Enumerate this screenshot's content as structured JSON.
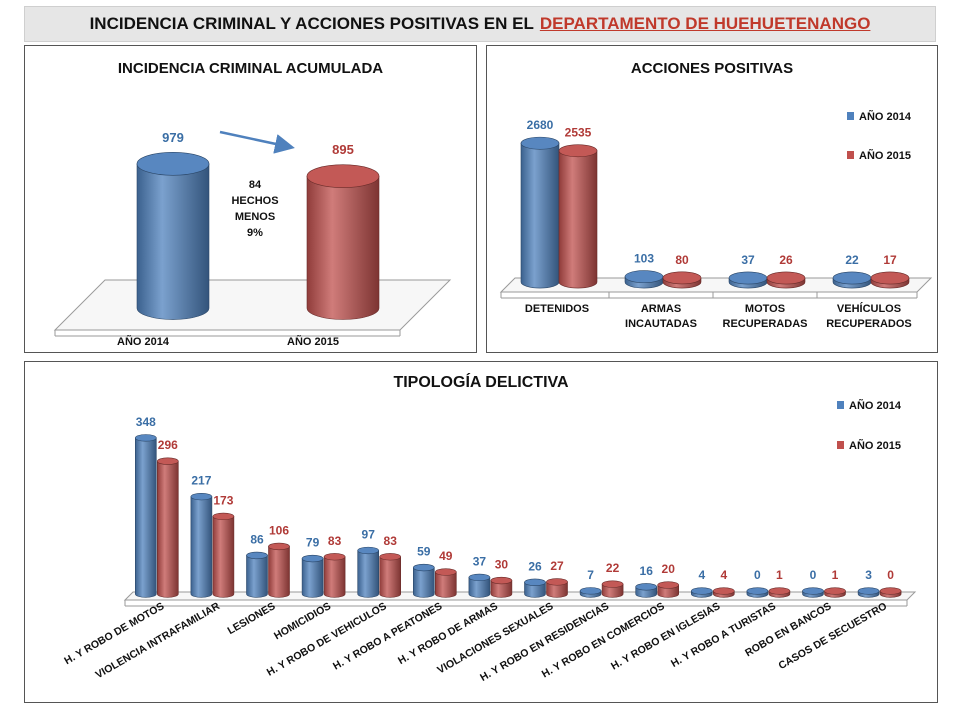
{
  "header": {
    "title_prefix": "INCIDENCIA CRIMINAL Y ACCIONES POSITIVAS EN EL",
    "title_highlight": "DEPARTAMENTO DE HUEHUETENANGO"
  },
  "colors": {
    "series_2014": "#4f81bd",
    "series_2015": "#c0504d",
    "label_2014": "#3a6ea5",
    "label_2015": "#b03a37",
    "highlight": "#c0392b"
  },
  "annotation": {
    "lines": [
      "84",
      "HECHOS",
      "MENOS",
      "9%"
    ]
  },
  "chart_data": [
    {
      "type": "bar",
      "title": "INCIDENCIA CRIMINAL ACUMULADA",
      "categories": [
        "AÑO 2014",
        "AÑO 2015"
      ],
      "values": [
        979,
        895
      ],
      "ylim": [
        0,
        1100
      ],
      "legend": "none",
      "grid": false
    },
    {
      "type": "bar",
      "title": "ACCIONES POSITIVAS",
      "categories": [
        [
          "DETENIDOS"
        ],
        [
          "ARMAS",
          "INCAUTADAS"
        ],
        [
          "MOTOS",
          "RECUPERADAS"
        ],
        [
          "VEHÍCULOS",
          "RECUPERADOS"
        ]
      ],
      "series": [
        {
          "name": "AÑO 2014",
          "values": [
            2680,
            103,
            37,
            22
          ]
        },
        {
          "name": "AÑO 2015",
          "values": [
            2535,
            80,
            26,
            17
          ]
        }
      ],
      "ylim": [
        0,
        2800
      ],
      "legend": "top-right",
      "grid": false
    },
    {
      "type": "bar",
      "title": "TIPOLOGÍA DELICTIVA",
      "categories": [
        "H. Y ROBO DE MOTOS",
        "VIOLENCIA INTRAFAMILIAR",
        "LESIONES",
        "HOMICIDIOS",
        "H. Y ROBO DE VEHICULOS",
        "H. Y ROBO A PEATONES",
        "H. Y ROBO DE ARMAS",
        "VIOLACIONES SEXUALES",
        "H. Y ROBO EN RESIDENCIAS",
        "H. Y ROBO EN COMERCIOS",
        "H. Y ROBO EN IGLESIAS",
        "H. Y ROBO A TURISTAS",
        "ROBO EN BANCOS",
        "CASOS DE SECUESTRO"
      ],
      "series": [
        {
          "name": "AÑO 2014",
          "values": [
            348,
            217,
            86,
            79,
            97,
            59,
            37,
            26,
            7,
            16,
            4,
            0,
            0,
            3
          ]
        },
        {
          "name": "AÑO 2015",
          "values": [
            296,
            173,
            106,
            83,
            83,
            49,
            30,
            27,
            22,
            20,
            4,
            1,
            1,
            0
          ]
        }
      ],
      "ylim": [
        0,
        370
      ],
      "legend": "top-right",
      "grid": false
    }
  ]
}
